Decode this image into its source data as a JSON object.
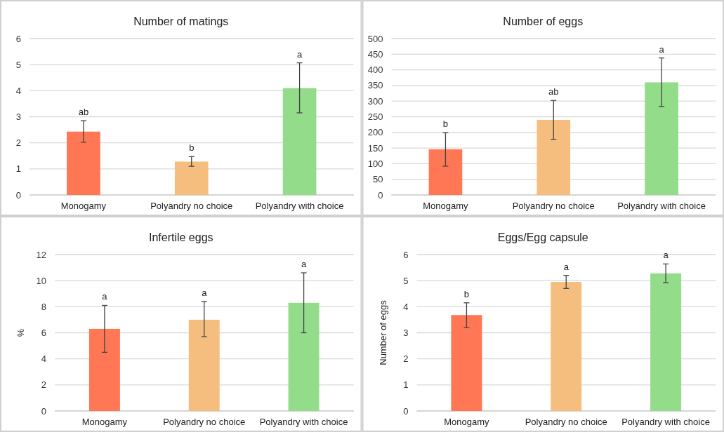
{
  "chart_data": [
    {
      "type": "bar",
      "title": "Number of matings",
      "categories": [
        "Monogamy",
        "Polyandry no choice",
        "Polyandry with choice"
      ],
      "values": [
        2.43,
        1.28,
        4.1
      ],
      "colors": [
        "#ff7755",
        "#f5be7e",
        "#93dc8a"
      ],
      "errors": [
        [
          2.02,
          2.85
        ],
        [
          1.1,
          1.47
        ],
        [
          3.15,
          5.07
        ]
      ],
      "ylim": [
        0,
        6
      ],
      "yticks": [
        0,
        1,
        2,
        3,
        4,
        5,
        6
      ],
      "grid": "y",
      "annotations": [
        {
          "text": "ab",
          "x": "Monogamy",
          "y": 2.85
        },
        {
          "text": "b",
          "x": "Polyandry no choice",
          "y": 1.47
        },
        {
          "text": "a",
          "x": "Polyandry with choice",
          "y": 5.07
        }
      ]
    },
    {
      "type": "bar",
      "title": "Number of eggs",
      "categories": [
        "Monogamy",
        "Polyandry no choice",
        "Polyandry with choice"
      ],
      "values": [
        146,
        240,
        360
      ],
      "colors": [
        "#ff7755",
        "#f5be7e",
        "#93dc8a"
      ],
      "errors": [
        [
          92,
          199
        ],
        [
          178,
          302
        ],
        [
          283,
          438
        ]
      ],
      "ylim": [
        0,
        500
      ],
      "yticks": [
        0,
        50,
        100,
        150,
        200,
        250,
        300,
        350,
        400,
        450,
        500
      ],
      "grid": "y",
      "annotations": [
        {
          "text": "b",
          "x": "Monogamy",
          "y": 199
        },
        {
          "text": "ab",
          "x": "Polyandry no choice",
          "y": 302
        },
        {
          "text": "a",
          "x": "Polyandry with choice",
          "y": 438
        }
      ]
    },
    {
      "type": "bar",
      "title": "Infertile eggs",
      "ylabel": "%",
      "categories": [
        "Monogamy",
        "Polyandry no choice",
        "Polyandry with choice"
      ],
      "values": [
        6.3,
        7.0,
        8.3
      ],
      "colors": [
        "#ff7755",
        "#f5be7e",
        "#93dc8a"
      ],
      "errors": [
        [
          4.5,
          8.1
        ],
        [
          5.7,
          8.4
        ],
        [
          6.0,
          10.6
        ]
      ],
      "ylim": [
        0,
        12
      ],
      "yticks": [
        0,
        2,
        4,
        6,
        8,
        10,
        12
      ],
      "grid": "y",
      "annotations": [
        {
          "text": "a",
          "x": "Monogamy",
          "y": 8.1
        },
        {
          "text": "a",
          "x": "Polyandry no choice",
          "y": 8.4
        },
        {
          "text": "a",
          "x": "Polyandry with choice",
          "y": 10.6
        }
      ]
    },
    {
      "type": "bar",
      "title": "Eggs/Egg capsule",
      "ylabel": "Number of eggs",
      "categories": [
        "Monogamy",
        "Polyandry no choice",
        "Polyandry with choice"
      ],
      "values": [
        3.68,
        4.95,
        5.28
      ],
      "colors": [
        "#ff7755",
        "#f5be7e",
        "#93dc8a"
      ],
      "errors": [
        [
          3.2,
          4.15
        ],
        [
          4.7,
          5.2
        ],
        [
          4.92,
          5.64
        ]
      ],
      "ylim": [
        0,
        6
      ],
      "yticks": [
        0,
        1,
        2,
        3,
        4,
        5,
        6
      ],
      "grid": "y",
      "annotations": [
        {
          "text": "b",
          "x": "Monogamy",
          "y": 4.15
        },
        {
          "text": "a",
          "x": "Polyandry no choice",
          "y": 5.2
        },
        {
          "text": "a",
          "x": "Polyandry with choice",
          "y": 5.64
        }
      ]
    }
  ]
}
